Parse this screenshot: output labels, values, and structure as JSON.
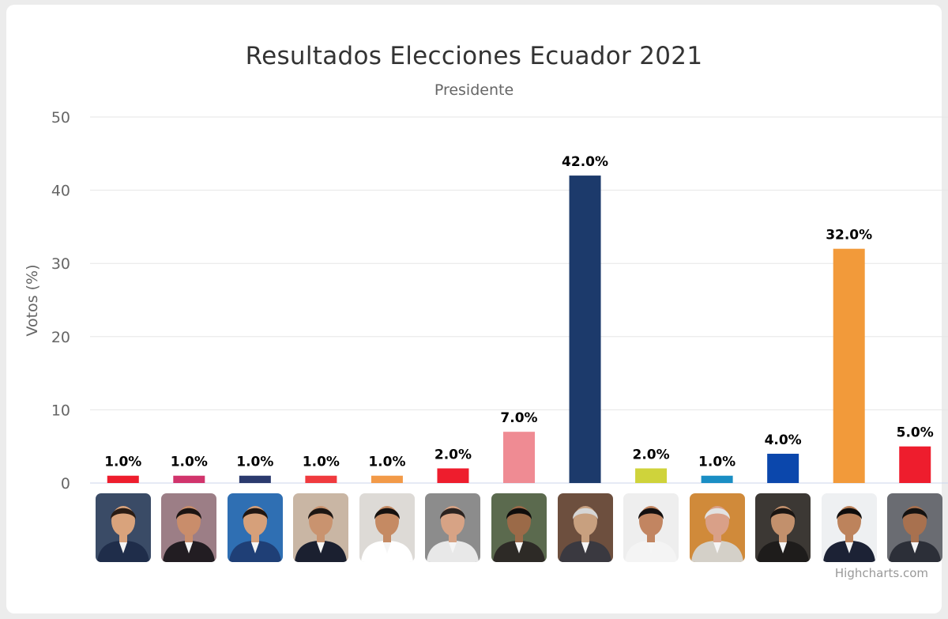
{
  "chart_data": {
    "type": "bar",
    "title": "Resultados Elecciones Ecuador 2021",
    "subtitle": "Presidente",
    "ylabel": "Votos (%)",
    "ylim": [
      0,
      50
    ],
    "yticks": [
      0,
      10,
      20,
      30,
      40,
      50
    ],
    "grid": true,
    "legend": "none",
    "data_labels": [
      "1.0%",
      "1.0%",
      "1.0%",
      "1.0%",
      "1.0%",
      "2.0%",
      "7.0%",
      "42.0%",
      "2.0%",
      "1.0%",
      "4.0%",
      "32.0%",
      "5.0%"
    ],
    "values": [
      1.0,
      1.0,
      1.0,
      1.0,
      1.0,
      2.0,
      7.0,
      42.0,
      2.0,
      1.0,
      4.0,
      32.0,
      5.0
    ],
    "colors": [
      "#ee1d2d",
      "#d1346c",
      "#2b3a6e",
      "#f03a3e",
      "#f29a48",
      "#ee1d2d",
      "#ef8b93",
      "#1c3a6b",
      "#cfd33b",
      "#1a8ec4",
      "#0b47ac",
      "#f29a3a",
      "#ee1d2d"
    ],
    "category_images": [
      {
        "icon": "candidate-photo-icon",
        "bg": "#3a4b66",
        "skin": "#d9a37c",
        "hair": "#2a1c14",
        "suit": "#1f2d4a"
      },
      {
        "icon": "candidate-photo-icon",
        "bg": "#9c7e86",
        "skin": "#c98d6b",
        "hair": "#1b1412",
        "suit": "#221d22"
      },
      {
        "icon": "candidate-photo-icon",
        "bg": "#2f6fb3",
        "skin": "#d6a07a",
        "hair": "#201612",
        "suit": "#1f3f76"
      },
      {
        "icon": "candidate-photo-icon",
        "bg": "#c9b6a4",
        "skin": "#c9936f",
        "hair": "#1d1613",
        "suit": "#1b2030"
      },
      {
        "icon": "candidate-photo-icon",
        "bg": "#dddad6",
        "skin": "#c58a63",
        "hair": "#15110f",
        "suit": "#ffffff"
      },
      {
        "icon": "candidate-photo-icon",
        "bg": "#8c8c8c",
        "skin": "#d7a385",
        "hair": "#2b2320",
        "suit": "#e8e8e8"
      },
      {
        "icon": "candidate-photo-icon",
        "bg": "#5b6a4e",
        "skin": "#9b6a48",
        "hair": "#0f0d0c",
        "suit": "#2d2a26"
      },
      {
        "icon": "candidate-photo-icon",
        "bg": "#6d4f3e",
        "skin": "#c8a07f",
        "hair": "#d6d6d6",
        "suit": "#3a3940"
      },
      {
        "icon": "candidate-photo-icon",
        "bg": "#eeeeee",
        "skin": "#c28561",
        "hair": "#141010",
        "suit": "#f4f4f4"
      },
      {
        "icon": "candidate-photo-icon",
        "bg": "#d08a3a",
        "skin": "#d9a088",
        "hair": "#e2e2e2",
        "suit": "#d4d0c8"
      },
      {
        "icon": "candidate-photo-icon",
        "bg": "#3c3834",
        "skin": "#c2906c",
        "hair": "#1a1512",
        "suit": "#1e1c1b"
      },
      {
        "icon": "candidate-photo-icon",
        "bg": "#eef0f2",
        "skin": "#bd835c",
        "hair": "#0f0d0c",
        "suit": "#1c2235"
      },
      {
        "icon": "candidate-photo-icon",
        "bg": "#6a6c72",
        "skin": "#a8714f",
        "hair": "#141211",
        "suit": "#2c2f38"
      }
    ]
  },
  "credits": "Highcharts.com"
}
